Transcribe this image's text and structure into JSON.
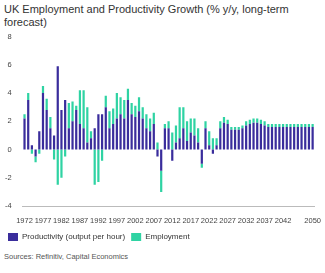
{
  "chart_data": {
    "type": "bar",
    "title": "UK Employment and Productivity Growth (% y/y, long-term forecast)",
    "source": "Sources: Refinitiv, Capital Economics",
    "categories": [
      "1972",
      null,
      null,
      null,
      null,
      "1977",
      null,
      null,
      null,
      null,
      "1982",
      null,
      null,
      null,
      null,
      "1987",
      null,
      null,
      null,
      null,
      "1992",
      null,
      null,
      null,
      null,
      "1997",
      null,
      null,
      null,
      null,
      "2002",
      null,
      null,
      null,
      null,
      "2007",
      null,
      null,
      null,
      null,
      "2012",
      null,
      null,
      null,
      null,
      "2017",
      null,
      null,
      null,
      null,
      "2022",
      null,
      null,
      null,
      null,
      "2027",
      null,
      null,
      null,
      null,
      "2032",
      null,
      null,
      null,
      null,
      "2037",
      null,
      null,
      null,
      null,
      "2042",
      null,
      null,
      null,
      null,
      null,
      null,
      null,
      "2050"
    ],
    "series": [
      {
        "name": "Productivity (output per hour)",
        "color": "#3a2d9c",
        "values": [
          2.2,
          3.5,
          0.3,
          -0.5,
          1.3,
          4.0,
          2.8,
          1.5,
          1.0,
          5.9,
          2.8,
          3.5,
          1.5,
          2.0,
          2.8,
          1.8,
          1.5,
          0.5,
          0.8,
          1.5,
          2.5,
          2.5,
          3.0,
          1.5,
          1.8,
          2.2,
          2.5,
          2.2,
          3.5,
          2.5,
          2.3,
          2.7,
          2.2,
          1.5,
          1.3,
          1.8,
          -0.5,
          -1.5,
          1.5,
          1.5,
          -0.8,
          0.5,
          0.8,
          1.5,
          0.6,
          1.2,
          1.0,
          0.5,
          -1.0,
          1.5,
          0.3,
          -0.3,
          0.3,
          1.5,
          1.9,
          1.8,
          1.4,
          1.4,
          1.4,
          1.5,
          1.7,
          1.8,
          1.9,
          1.9,
          1.8,
          1.7,
          1.6,
          1.6,
          1.6,
          1.6,
          1.6,
          1.6,
          1.6,
          1.6,
          1.6,
          1.6,
          1.6,
          1.6,
          1.6
        ]
      },
      {
        "name": "Employment",
        "color": "#2fd3a3",
        "values": [
          0.3,
          0.5,
          -0.3,
          -0.4,
          -0.3,
          0.5,
          0.8,
          0.8,
          -0.7,
          -2.5,
          -2.0,
          -0.5,
          1.8,
          1.4,
          0.3,
          2.4,
          2.7,
          2.5,
          0.5,
          -2.5,
          -2.3,
          -0.8,
          0.8,
          1.2,
          1.1,
          1.8,
          1.2,
          1.3,
          0.8,
          0.8,
          0.8,
          1.0,
          0.8,
          1.0,
          0.9,
          0.8,
          0.5,
          -1.5,
          0.3,
          0.5,
          1.2,
          1.2,
          2.2,
          1.5,
          1.4,
          1.0,
          1.2,
          1.0,
          -0.3,
          0.5,
          1.0,
          0.8,
          0.5,
          0.5,
          0.4,
          0.3,
          0.2,
          0.2,
          0.2,
          0.2,
          0.3,
          0.3,
          0.3,
          0.3,
          0.3,
          0.3,
          0.2,
          0.2,
          0.2,
          0.2,
          0.2,
          0.2,
          0.2,
          0.2,
          0.2,
          0.2,
          0.2,
          0.2,
          0.2
        ]
      }
    ],
    "ylim": [
      -4,
      8
    ],
    "yticks": [
      -4,
      -2,
      0,
      2,
      4,
      6,
      8
    ],
    "stacked": true,
    "legend": "bottom",
    "grid": false
  }
}
